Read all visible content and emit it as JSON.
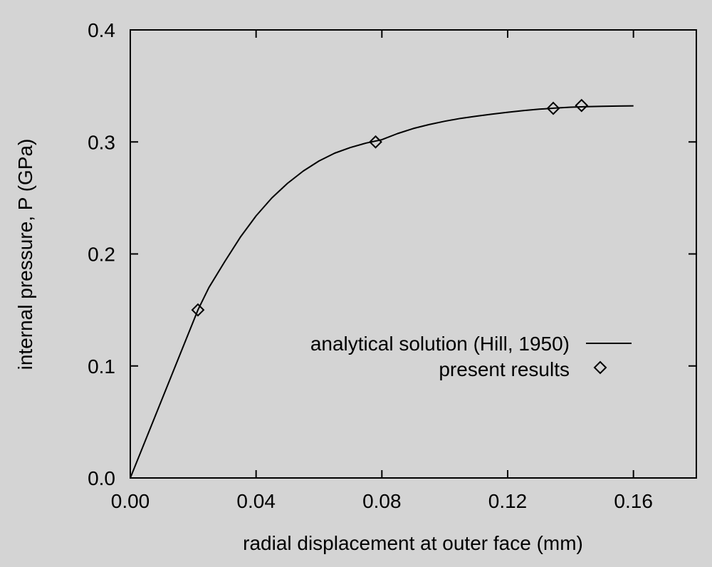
{
  "chart_data": {
    "type": "line",
    "xlabel": "radial displacement at outer face (mm)",
    "ylabel": "internal pressure, P (GPa)",
    "xlim": [
      0,
      0.18
    ],
    "ylim": [
      0,
      0.4
    ],
    "x_ticks": [
      "0.00",
      "0.04",
      "0.08",
      "0.12",
      "0.16"
    ],
    "x_tick_values": [
      0,
      0.04,
      0.08,
      0.12,
      0.16
    ],
    "y_ticks": [
      "0.0",
      "0.1",
      "0.2",
      "0.3",
      "0.4"
    ],
    "y_tick_values": [
      0,
      0.1,
      0.2,
      0.3,
      0.4
    ],
    "grid": false,
    "legend_position": "right",
    "series": [
      {
        "name": "analytical solution (Hill, 1950)",
        "style": "line",
        "color": "#000000",
        "x": [
          0,
          0.0215,
          0.025,
          0.03,
          0.035,
          0.04,
          0.045,
          0.05,
          0.055,
          0.06,
          0.065,
          0.07,
          0.075,
          0.08,
          0.085,
          0.09,
          0.095,
          0.1,
          0.105,
          0.11,
          0.115,
          0.12,
          0.125,
          0.13,
          0.135,
          0.14,
          0.145,
          0.15,
          0.155,
          0.16
        ],
        "y": [
          0,
          0.15,
          0.17,
          0.193,
          0.215,
          0.234,
          0.25,
          0.263,
          0.274,
          0.283,
          0.29,
          0.295,
          0.299,
          0.302,
          0.3075,
          0.312,
          0.3155,
          0.3185,
          0.321,
          0.323,
          0.3248,
          0.3265,
          0.328,
          0.3292,
          0.3302,
          0.331,
          0.3315,
          0.3318,
          0.332,
          0.3322
        ]
      },
      {
        "name": "present results",
        "style": "markers",
        "marker": "diamond",
        "color": "#000000",
        "x": [
          0.0215,
          0.078,
          0.1345,
          0.1435
        ],
        "y": [
          0.15,
          0.3,
          0.33,
          0.3325
        ]
      }
    ]
  }
}
